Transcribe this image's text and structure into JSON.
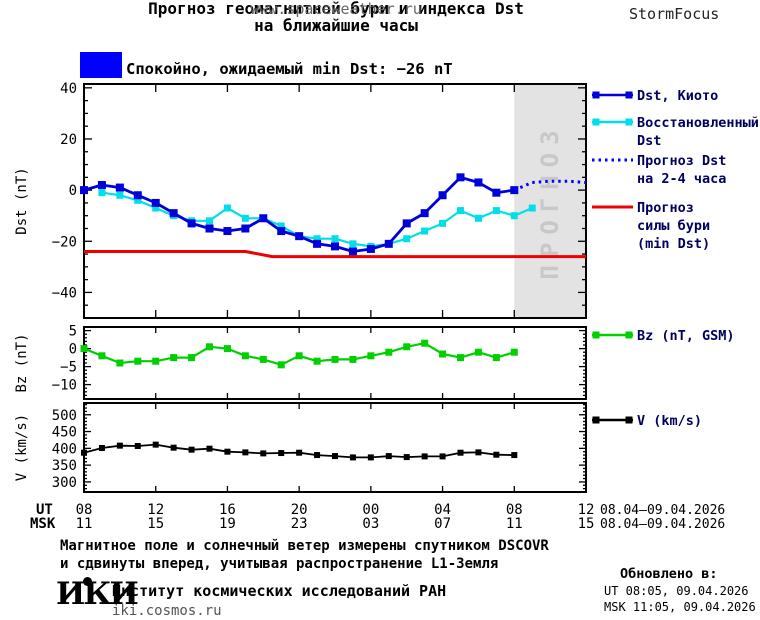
{
  "header": {
    "title_line1": "Прогноз геомагнитной бури и индекса Dst",
    "title_line2": "на ближайшие часы",
    "website": "www.spaceweather.ru",
    "brand": "StormFocus",
    "status_text": "Спокойно, ожидаемый min Dst: −26 nT",
    "status_color": "#0000ff"
  },
  "xaxis": {
    "ut_label": "UT",
    "msk_label": "MSK",
    "tick_hours": [
      0,
      4,
      8,
      12,
      16,
      20,
      24,
      28
    ],
    "ut_ticks": [
      "08",
      "12",
      "16",
      "20",
      "00",
      "04",
      "08",
      "12"
    ],
    "msk_ticks": [
      "11",
      "15",
      "19",
      "23",
      "03",
      "07",
      "11",
      "15"
    ],
    "ut_date": "08.04–09.04.2026",
    "msk_date": "08.04–09.04.2026"
  },
  "chart_data": [
    {
      "type": "line",
      "title": "Прогноз геомагнитной бури и индекса Dst на ближайшие часы",
      "ylabel": "Dst (nT)",
      "yticks": [
        40,
        20,
        0,
        -20,
        -40
      ],
      "ylim": [
        41.5,
        -50
      ],
      "xlim_hours": [
        0,
        28
      ],
      "x_axis_note": "hours after 08:00 UT 08.04.2026",
      "grid": false,
      "legend_position": "right",
      "forecast_region": {
        "label": "ПРОГНОЗ",
        "x_start": 24,
        "x_end": 28
      },
      "series": [
        {
          "name": "Dst, Киото",
          "color": "#0000d8",
          "marker": "square",
          "marker_size": 8,
          "width": 2.8,
          "z": 2,
          "x": [
            0,
            1,
            2,
            3,
            4,
            5,
            6,
            7,
            8,
            9,
            10,
            11,
            12,
            13,
            14,
            15,
            16,
            17,
            18,
            19,
            20,
            21,
            22,
            23,
            24
          ],
          "values": [
            0,
            2,
            1,
            -2,
            -5,
            -9,
            -13,
            -15,
            -16,
            -15,
            -11,
            -16,
            -18,
            -21,
            -22,
            -24,
            -23,
            -21,
            -13,
            -9,
            -2,
            5,
            3,
            -1,
            0
          ]
        },
        {
          "name": "Восстановленный Dst",
          "color": "#00dfe8",
          "marker": "square",
          "marker_size": 7,
          "width": 2.2,
          "z": 1,
          "x": [
            1,
            2,
            3,
            4,
            5,
            6,
            7,
            8,
            9,
            10,
            11,
            12,
            13,
            14,
            15,
            16,
            17,
            18,
            19,
            20,
            21,
            22,
            23,
            24,
            25
          ],
          "values": [
            -1,
            -2,
            -4,
            -7,
            -10,
            -12,
            -12,
            -7,
            -11,
            -11,
            -14,
            -18,
            -19,
            -19,
            -21,
            -22,
            -21,
            -19,
            -16,
            -13,
            -8,
            -11,
            -8,
            -10,
            -7
          ]
        },
        {
          "name": "Прогноз Dst на 2-4 часа",
          "color": "#0000ff",
          "style": "dotted",
          "width": 3,
          "z": 3,
          "x": [
            24,
            25,
            26,
            27,
            28
          ],
          "values": [
            0,
            3,
            3.5,
            3.5,
            3
          ]
        },
        {
          "name": "Прогноз силы бури (min Dst)",
          "color": "#ee0000",
          "width": 3,
          "z": 4,
          "x": [
            0,
            9,
            10.5,
            28
          ],
          "values": [
            -24,
            -24,
            -26,
            -26
          ]
        }
      ],
      "legend": [
        {
          "lines": [
            "Dst, Киото"
          ],
          "color": "#0000d8",
          "style": "line-markers"
        },
        {
          "lines": [
            "Восстановленный",
            "Dst"
          ],
          "color": "#00dfe8",
          "style": "line-markers"
        },
        {
          "lines": [
            "Прогноз Dst",
            "на 2-4 часа"
          ],
          "color": "#0000ff",
          "style": "dotted"
        },
        {
          "lines": [
            "Прогноз",
            "силы бури",
            "(min Dst)"
          ],
          "color": "#ee0000",
          "style": "line"
        }
      ]
    },
    {
      "type": "line",
      "ylabel": "Bz (nT)",
      "yticks": [
        5,
        0,
        -5,
        -10
      ],
      "ylim": [
        6,
        -14
      ],
      "xlim_hours": [
        0,
        28
      ],
      "grid": false,
      "series": [
        {
          "name": "Bz (nT, GSM)",
          "color": "#00d000",
          "marker": "square",
          "marker_size": 7,
          "width": 2.2,
          "z": 1,
          "x": [
            0,
            1,
            2,
            3,
            4,
            5,
            6,
            7,
            8,
            9,
            10,
            11,
            12,
            13,
            14,
            15,
            16,
            17,
            18,
            19,
            20,
            21,
            22,
            23,
            24
          ],
          "values": [
            0,
            -2,
            -4,
            -3.5,
            -3.5,
            -2.5,
            -2.5,
            0.5,
            0,
            -2,
            -3,
            -4.5,
            -2,
            -3.5,
            -3,
            -3,
            -2,
            -1,
            0.5,
            1.5,
            -1.5,
            -2.5,
            -1,
            -2.5,
            -1
          ]
        }
      ],
      "legend": [
        {
          "lines": [
            "Bz (nT, GSM)"
          ],
          "color": "#00d000",
          "style": "line-markers"
        }
      ]
    },
    {
      "type": "line",
      "ylabel": "V (km/s)",
      "yticks": [
        500,
        450,
        400,
        350,
        300
      ],
      "ylim": [
        535,
        270
      ],
      "xlim_hours": [
        0,
        28
      ],
      "grid": false,
      "series": [
        {
          "name": "V (km/s)",
          "color": "#000000",
          "marker": "square",
          "marker_size": 6,
          "width": 1.8,
          "z": 1,
          "x": [
            0,
            1,
            2,
            3,
            4,
            5,
            6,
            7,
            8,
            9,
            10,
            11,
            12,
            13,
            14,
            15,
            16,
            17,
            18,
            19,
            20,
            21,
            22,
            23,
            24
          ],
          "values": [
            387,
            401,
            408,
            407,
            411,
            402,
            396,
            399,
            390,
            388,
            385,
            386,
            387,
            380,
            377,
            373,
            373,
            377,
            374,
            376,
            376,
            387,
            388,
            381,
            380
          ]
        }
      ],
      "legend": [
        {
          "lines": [
            "V (km/s)"
          ],
          "color": "#000000",
          "style": "line-markers"
        }
      ]
    }
  ],
  "footer": {
    "note_line1": "Магнитное поле и солнечный ветер измерены спутником DSCOVR",
    "note_line2": "и сдвинуты вперед, учитывая распространение L1-Земля",
    "logo_text": "ИКИ",
    "institute": "Институт космических исследований РАН",
    "site": "iki.cosmos.ru"
  },
  "updated": {
    "heading": "Обновлено в:",
    "ut_line": "UT  08:05, 09.04.2026",
    "msk_line": "MSK 11:05, 09.04.2026"
  }
}
